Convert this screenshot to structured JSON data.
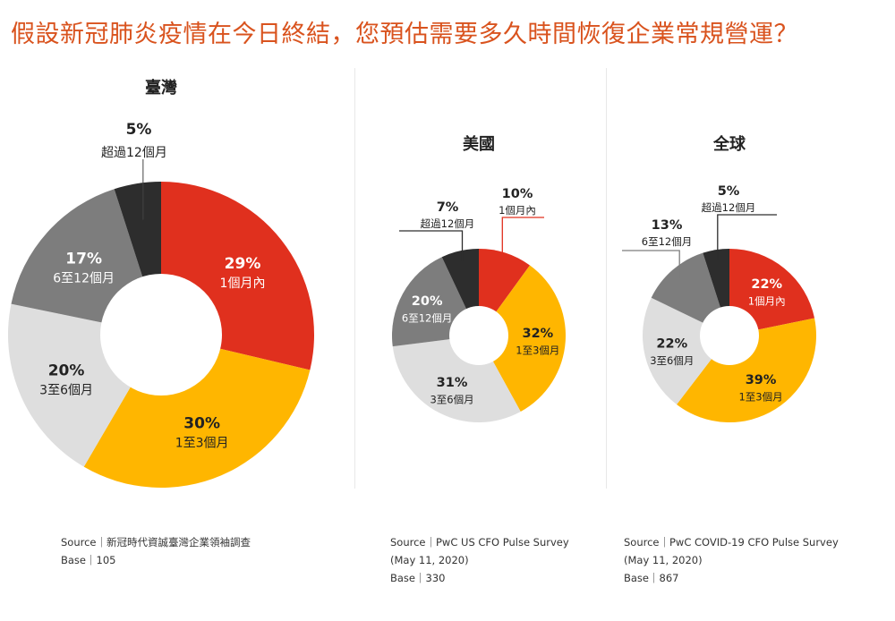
{
  "title": "假設新冠肺炎疫情在今日終結，您預估需要多久時間恢復企業常規營運？",
  "colors": {
    "title": "#d9531e",
    "within_1_month": "#e0301e",
    "1_to_3_months": "#ffb600",
    "3_to_6_months": "#dedede",
    "6_to_12_months": "#7d7d7d",
    "over_12_months": "#2d2d2d"
  },
  "chart_data": [
    {
      "type": "donut",
      "title": "臺灣",
      "slices": [
        {
          "label": "1個月內",
          "value": 29,
          "value_label": "29%",
          "color": "#e0301e",
          "text_color": "#ffffff"
        },
        {
          "label": "1至3個月",
          "value": 30,
          "value_label": "30%",
          "color": "#ffb600",
          "text_color": "#222222"
        },
        {
          "label": "3至6個月",
          "value": 20,
          "value_label": "20%",
          "color": "#dedede",
          "text_color": "#222222"
        },
        {
          "label": "6至12個月",
          "value": 17,
          "value_label": "17%",
          "color": "#7d7d7d",
          "text_color": "#ffffff"
        },
        {
          "label": "超過12個月",
          "value": 5,
          "value_label": "5%",
          "color": "#2d2d2d",
          "text_color": "#222222"
        }
      ]
    },
    {
      "type": "donut",
      "title": "美國",
      "slices": [
        {
          "label": "1個月內",
          "value": 10,
          "value_label": "10%",
          "color": "#e0301e",
          "text_color": "#222222"
        },
        {
          "label": "1至3個月",
          "value": 32,
          "value_label": "32%",
          "color": "#ffb600",
          "text_color": "#222222"
        },
        {
          "label": "3至6個月",
          "value": 31,
          "value_label": "31%",
          "color": "#dedede",
          "text_color": "#222222"
        },
        {
          "label": "6至12個月",
          "value": 20,
          "value_label": "20%",
          "color": "#7d7d7d",
          "text_color": "#ffffff"
        },
        {
          "label": "超過12個月",
          "value": 7,
          "value_label": "7%",
          "color": "#2d2d2d",
          "text_color": "#222222"
        }
      ]
    },
    {
      "type": "donut",
      "title": "全球",
      "slices": [
        {
          "label": "1個月內",
          "value": 22,
          "value_label": "22%",
          "color": "#e0301e",
          "text_color": "#ffffff"
        },
        {
          "label": "1至3個月",
          "value": 39,
          "value_label": "39%",
          "color": "#ffb600",
          "text_color": "#222222"
        },
        {
          "label": "3至6個月",
          "value": 22,
          "value_label": "22%",
          "color": "#dedede",
          "text_color": "#222222"
        },
        {
          "label": "6至12個月",
          "value": 13,
          "value_label": "13%",
          "color": "#7d7d7d",
          "text_color": "#222222"
        },
        {
          "label": "超過12個月",
          "value": 5,
          "value_label": "5%",
          "color": "#2d2d2d",
          "text_color": "#222222"
        }
      ]
    }
  ],
  "sources": [
    {
      "lines": [
        "Source｜新冠時代資誠臺灣企業領袖調查",
        "Base｜105"
      ]
    },
    {
      "lines": [
        "Source｜PwC US CFO Pulse Survey",
        "(May 11, 2020)",
        "Base｜330"
      ]
    },
    {
      "lines": [
        "Source｜PwC COVID-19 CFO Pulse Survey",
        "(May 11, 2020)",
        "Base｜867"
      ]
    }
  ]
}
